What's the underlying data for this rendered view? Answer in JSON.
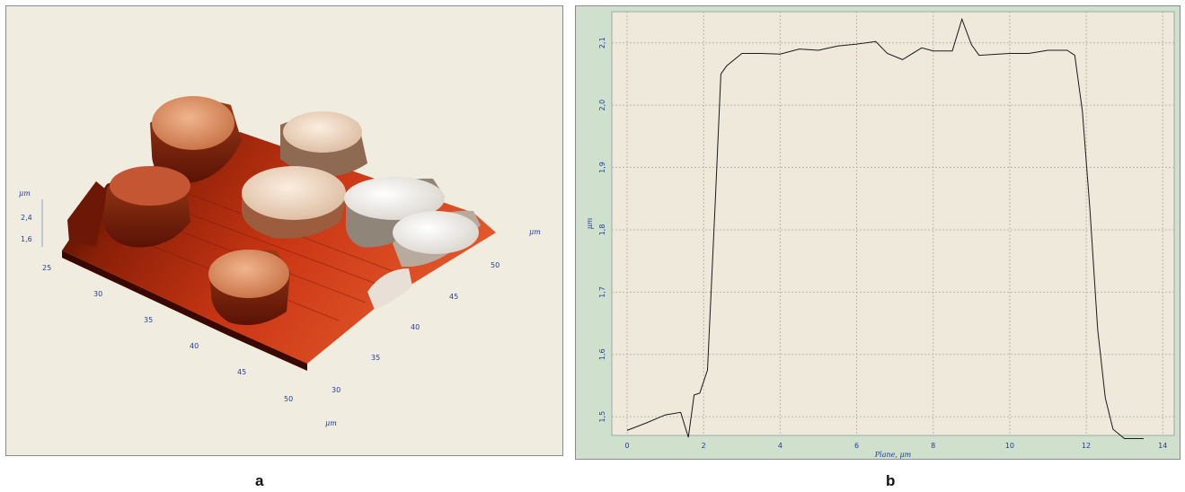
{
  "captions": {
    "a": "a",
    "b": "b"
  },
  "panel_a": {
    "z_unit": "μm",
    "z_ticks": [
      "2,4",
      "1,6"
    ],
    "x_unit": "μm",
    "x_ticks": [
      "25",
      "30",
      "35",
      "40",
      "45",
      "50"
    ],
    "y_unit": "μm",
    "y_ticks": [
      "30",
      "35",
      "40",
      "45",
      "50"
    ]
  },
  "chart_data": {
    "type": "line",
    "title": "",
    "xlabel": "Plane, μm",
    "ylabel": "μm",
    "xlim": [
      -0.4,
      14.3
    ],
    "ylim": [
      1.47,
      2.15
    ],
    "x_ticks": [
      0,
      2,
      4,
      6,
      8,
      10,
      12,
      14
    ],
    "y_ticks": [
      1.5,
      1.6,
      1.7,
      1.8,
      1.9,
      2.0,
      2.1
    ],
    "y_tick_labels": [
      "1,5",
      "1,6",
      "1,7",
      "1,8",
      "1,9",
      "2,0",
      "2,1"
    ],
    "grid": true,
    "colors": {
      "plot_bg": "#efe9dc",
      "frame_bg": "#cfe0cc",
      "line": "#1a1a1a",
      "text": "#1f3f9a"
    },
    "series": [
      {
        "x": [
          0,
          0.5,
          1.0,
          1.4,
          1.6,
          1.75,
          1.9,
          2.1,
          2.3,
          2.45,
          2.6,
          3.0,
          3.5,
          4.0,
          4.5,
          5.0,
          5.5,
          6.0,
          6.5,
          6.8,
          7.2,
          7.7,
          8.0,
          8.5,
          8.75,
          9.0,
          9.2,
          10.0,
          10.5,
          11.0,
          11.5,
          11.7,
          11.9,
          12.1,
          12.3,
          12.5,
          12.7,
          13.0,
          13.5
        ],
        "y": [
          1.478,
          1.49,
          1.503,
          1.507,
          1.467,
          1.535,
          1.538,
          1.575,
          1.84,
          2.05,
          2.063,
          2.083,
          2.083,
          2.082,
          2.09,
          2.088,
          2.095,
          2.098,
          2.102,
          2.083,
          2.073,
          2.092,
          2.087,
          2.087,
          2.138,
          2.097,
          2.08,
          2.083,
          2.083,
          2.088,
          2.088,
          2.08,
          1.99,
          1.83,
          1.64,
          1.53,
          1.48,
          1.465,
          1.465
        ]
      }
    ]
  }
}
